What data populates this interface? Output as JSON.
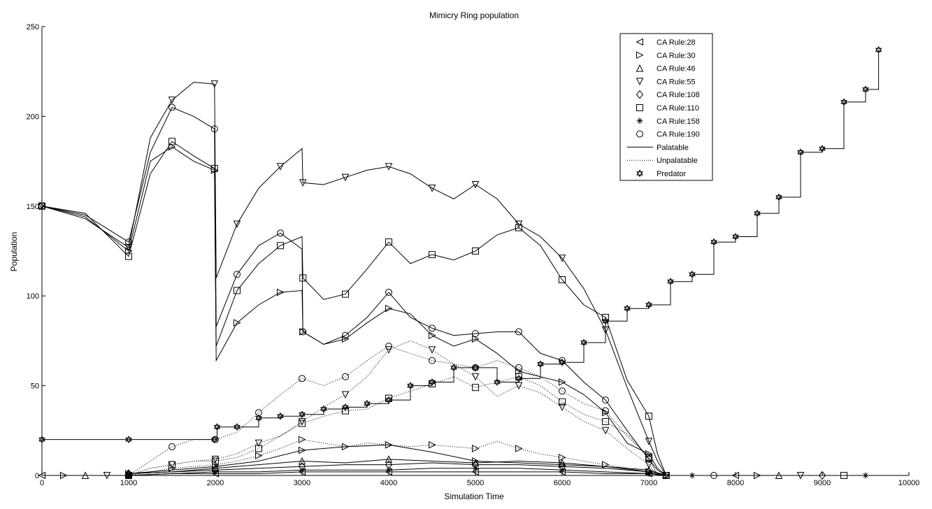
{
  "chart_data": {
    "type": "line",
    "title": "Mimicry Ring population",
    "xlabel": "Simulation Time",
    "ylabel": "Population",
    "xlim": [
      0,
      10000
    ],
    "ylim": [
      0,
      250
    ],
    "x_ticks": [
      "0",
      "1000",
      "2000",
      "3000",
      "4000",
      "5000",
      "6000",
      "7000",
      "8000",
      "9000",
      "10000"
    ],
    "y_ticks": [
      "0",
      "50",
      "100",
      "150",
      "200",
      "250"
    ],
    "grid": false,
    "legend_position": "top-right",
    "legend": [
      {
        "label": "CA Rule:28",
        "marker": "triangle-left"
      },
      {
        "label": "CA Rule:30",
        "marker": "triangle-right"
      },
      {
        "label": "CA Rule:46",
        "marker": "triangle-up"
      },
      {
        "label": "CA Rule:55",
        "marker": "triangle-down"
      },
      {
        "label": "CA Rule:108",
        "marker": "diamond"
      },
      {
        "label": "CA Rule:110",
        "marker": "square"
      },
      {
        "label": "CA Rule:158",
        "marker": "star"
      },
      {
        "label": "CA Rule:190",
        "marker": "circle"
      },
      {
        "label": "Palatable",
        "line": "solid"
      },
      {
        "label": "Unpalatable",
        "line": "dotted"
      },
      {
        "label": "Predator",
        "marker": "hexagram"
      }
    ],
    "series": [
      {
        "name": "CA Rule:55",
        "style": "solid",
        "marker": "triangle-down",
        "x": [
          0,
          500,
          1000,
          1250,
          1500,
          1750,
          1990,
          2010,
          2250,
          2500,
          2750,
          3000,
          3010,
          3250,
          3500,
          3750,
          4000,
          4250,
          4500,
          4750,
          5000,
          5250,
          5500,
          5750,
          6000,
          6250,
          6500,
          6750,
          7000,
          7100,
          7200
        ],
        "y": [
          150,
          143,
          127,
          188,
          209,
          219,
          218,
          110,
          140,
          160,
          172,
          182,
          163,
          162,
          166,
          170,
          172,
          168,
          160,
          154,
          162,
          154,
          140,
          133,
          121,
          104,
          81,
          49,
          19,
          8,
          0
        ]
      },
      {
        "name": "CA Rule:110",
        "style": "solid",
        "marker": "square",
        "x": [
          0,
          500,
          1000,
          1250,
          1500,
          1750,
          1990,
          2010,
          2250,
          2500,
          2750,
          3000,
          3010,
          3250,
          3500,
          3750,
          4000,
          4250,
          4500,
          4750,
          5000,
          5250,
          5500,
          5750,
          6000,
          6250,
          6500,
          6750,
          7000,
          7100,
          7200
        ],
        "y": [
          150,
          146,
          122,
          168,
          186,
          178,
          171,
          72,
          103,
          118,
          128,
          133,
          110,
          98,
          101,
          115,
          130,
          118,
          123,
          120,
          125,
          134,
          138,
          128,
          109,
          95,
          88,
          53,
          33,
          12,
          0
        ]
      },
      {
        "name": "CA Rule:190",
        "style": "solid",
        "marker": "circle",
        "x": [
          0,
          500,
          1000,
          1250,
          1500,
          1750,
          1990,
          2010,
          2250,
          2500,
          2750,
          3000,
          3010,
          3250,
          3500,
          3750,
          4000,
          4250,
          4500,
          4750,
          5000,
          5250,
          5500,
          5750,
          6000,
          6250,
          6500,
          6750,
          7000,
          7100,
          7200
        ],
        "y": [
          150,
          145,
          130,
          180,
          205,
          200,
          193,
          83,
          112,
          128,
          135,
          126,
          80,
          73,
          78,
          88,
          102,
          88,
          82,
          78,
          79,
          80,
          80,
          68,
          64,
          52,
          42,
          25,
          9,
          3,
          0
        ]
      },
      {
        "name": "CA Rule:30",
        "style": "solid",
        "marker": "triangle-right",
        "x": [
          0,
          500,
          1000,
          1250,
          1500,
          1750,
          1990,
          2010,
          2250,
          2500,
          2750,
          3000,
          3010,
          3250,
          3500,
          3750,
          4000,
          4250,
          4500,
          4750,
          5000,
          5250,
          5500,
          5750,
          6000,
          6250,
          6500,
          6750,
          7000,
          7100,
          7200
        ],
        "y": [
          150,
          144,
          125,
          175,
          183,
          175,
          170,
          64,
          85,
          95,
          102,
          103,
          80,
          73,
          76,
          85,
          93,
          90,
          78,
          72,
          76,
          68,
          58,
          55,
          52,
          45,
          35,
          18,
          12,
          4,
          0
        ]
      },
      {
        "name": "Unpalatable CA Rule:190",
        "style": "dotted",
        "marker": "circle",
        "x": [
          1000,
          1250,
          1500,
          1750,
          2000,
          2250,
          2500,
          2750,
          3000,
          3250,
          3500,
          3750,
          4000,
          4250,
          4500,
          4750,
          5000,
          5250,
          5500,
          5750,
          6000,
          6250,
          6500,
          6750,
          7000,
          7100
        ],
        "y": [
          0,
          8,
          16,
          20,
          20,
          24,
          35,
          45,
          54,
          50,
          55,
          64,
          72,
          68,
          64,
          62,
          60,
          64,
          60,
          55,
          47,
          40,
          36,
          22,
          10,
          0
        ]
      },
      {
        "name": "Unpalatable CA Rule:110",
        "style": "dotted",
        "marker": "square",
        "x": [
          1000,
          1250,
          1500,
          1750,
          2000,
          2250,
          2500,
          2750,
          3000,
          3250,
          3500,
          3750,
          4000,
          4250,
          4500,
          4750,
          5000,
          5250,
          5500,
          5750,
          6000,
          6250,
          6500,
          6750,
          7000,
          7100
        ],
        "y": [
          0,
          4,
          6,
          8,
          8,
          10,
          15,
          22,
          29,
          33,
          36,
          37,
          43,
          47,
          51,
          55,
          49,
          52,
          55,
          50,
          41,
          34,
          30,
          23,
          10,
          0
        ]
      },
      {
        "name": "Unpalatable CA Rule:30",
        "style": "dotted",
        "marker": "triangle-right",
        "x": [
          1000,
          1250,
          1500,
          1750,
          2000,
          2250,
          2500,
          2750,
          3000,
          3250,
          3500,
          3750,
          4000,
          4250,
          4500,
          4750,
          5000,
          5250,
          5500,
          5750,
          6000,
          6250,
          6500,
          6750,
          7000,
          7100
        ],
        "y": [
          0,
          2,
          4,
          5,
          6,
          8,
          11,
          15,
          20,
          18,
          16,
          18,
          17,
          16,
          17,
          16,
          15,
          19,
          15,
          12,
          10,
          8,
          6,
          4,
          2,
          0
        ]
      },
      {
        "name": "Unpalatable CA Rule:55",
        "style": "dotted",
        "marker": "triangle-down",
        "x": [
          1000,
          1250,
          1500,
          1750,
          2000,
          2250,
          2500,
          2750,
          3000,
          3250,
          3500,
          3750,
          4000,
          4250,
          4500,
          4750,
          5000,
          5250,
          5500,
          5750,
          6000,
          6250,
          6500,
          6750,
          7000,
          7100
        ],
        "y": [
          0,
          4,
          6,
          8,
          9,
          12,
          18,
          22,
          30,
          38,
          45,
          55,
          70,
          75,
          70,
          62,
          55,
          44,
          50,
          46,
          38,
          30,
          25,
          15,
          6,
          0
        ]
      },
      {
        "name": "Palatable CA Rule:30 low",
        "style": "solid",
        "marker": "triangle-right",
        "x": [
          1000,
          1500,
          2000,
          2500,
          3000,
          3500,
          4000,
          4500,
          5000,
          5500,
          6000,
          6500,
          7000,
          7200
        ],
        "y": [
          1,
          3,
          5,
          8,
          14,
          16,
          17,
          13,
          8,
          7,
          6,
          5,
          2,
          0
        ]
      },
      {
        "name": "Palatable CA Rule:46",
        "style": "solid",
        "marker": "triangle-up",
        "x": [
          1000,
          1500,
          2000,
          2500,
          3000,
          3500,
          4000,
          4500,
          5000,
          5500,
          6000,
          6500,
          7000,
          7200
        ],
        "y": [
          1,
          2,
          4,
          6,
          8,
          7,
          9,
          8,
          7,
          8,
          7,
          5,
          3,
          0
        ]
      },
      {
        "name": "Palatable CA Rule:108",
        "style": "solid",
        "marker": "diamond",
        "x": [
          1000,
          1500,
          2000,
          2500,
          3000,
          3500,
          4000,
          4500,
          5000,
          5500,
          6000,
          6500,
          7000,
          7200
        ],
        "y": [
          1,
          2,
          3,
          4,
          5,
          6,
          6,
          7,
          6,
          6,
          5,
          4,
          2,
          0
        ]
      },
      {
        "name": "Palatable CA Rule:158",
        "style": "solid",
        "marker": "star",
        "x": [
          1000,
          1500,
          2000,
          2500,
          3000,
          3500,
          4000,
          4500,
          5000,
          5500,
          6000,
          6500,
          7000,
          7200
        ],
        "y": [
          0,
          1,
          2,
          2,
          3,
          3,
          3,
          4,
          4,
          4,
          3,
          2,
          1,
          0
        ]
      },
      {
        "name": "Palatable CA Rule:28",
        "style": "solid",
        "marker": "triangle-left",
        "x": [
          1000,
          1500,
          2000,
          2500,
          3000,
          3500,
          4000,
          4500,
          5000,
          5500,
          6000,
          6500,
          7000,
          7200
        ],
        "y": [
          0,
          1,
          1,
          1,
          2,
          2,
          2,
          2,
          2,
          2,
          2,
          1,
          1,
          0
        ]
      },
      {
        "name": "Predator",
        "style": "solid",
        "marker": "hexagram",
        "step": true,
        "x": [
          0,
          1000,
          1990,
          2020,
          2250,
          2500,
          2750,
          3000,
          3250,
          3500,
          3750,
          4000,
          4250,
          4500,
          4750,
          5000,
          5250,
          5500,
          5750,
          6000,
          6250,
          6500,
          6750,
          7000,
          7250,
          7500,
          7750,
          8000,
          8250,
          8500,
          8750,
          9000,
          9250,
          9500,
          9650
        ],
        "y": [
          20,
          20,
          20,
          27,
          27,
          32,
          33,
          34,
          37,
          38,
          40,
          42,
          50,
          52,
          60,
          60,
          52,
          54,
          62,
          63,
          74,
          86,
          93,
          95,
          108,
          112,
          130,
          133,
          146,
          155,
          180,
          182,
          208,
          215,
          237
        ]
      }
    ],
    "colors": {
      "line": "#000000",
      "background": "#ffffff"
    }
  }
}
